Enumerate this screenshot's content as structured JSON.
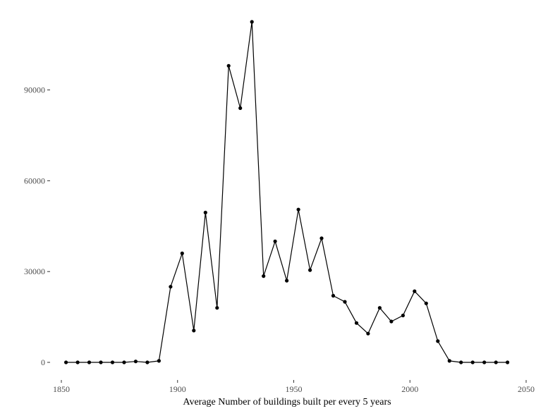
{
  "chart_data": {
    "type": "line",
    "title": "",
    "xlabel": "Average Number of buildings built per every 5 years",
    "ylabel": "",
    "xlim": [
      1850,
      2050
    ],
    "ylim": [
      0,
      112500
    ],
    "grid": false,
    "legend": "none",
    "x_ticks": [
      1850,
      1900,
      1950,
      2000,
      2050
    ],
    "x_tick_labels": [
      "1850",
      "1900",
      "1950",
      "2000",
      "2050"
    ],
    "y_ticks": [
      0,
      30000,
      60000,
      90000
    ],
    "y_tick_labels": [
      "0",
      "30000",
      "60000",
      "90000"
    ],
    "line_color": "#000000",
    "series": [
      {
        "x": [
          1852,
          1857,
          1862,
          1867,
          1872,
          1877,
          1882,
          1887,
          1892,
          1897,
          1902,
          1907,
          1912,
          1917,
          1922,
          1927,
          1932,
          1937,
          1942,
          1947,
          1952,
          1957,
          1962,
          1967,
          1972,
          1977,
          1982,
          1987,
          1992,
          1997,
          2002,
          2007,
          2012,
          2017,
          2022,
          2027,
          2032,
          2037,
          2042
        ],
        "values": [
          0,
          0,
          0,
          0,
          0,
          0,
          300,
          0,
          500,
          25000,
          36000,
          10500,
          49500,
          18000,
          98000,
          84000,
          112500,
          28500,
          40000,
          27000,
          50500,
          30500,
          41000,
          22000,
          20000,
          13000,
          9500,
          18000,
          13500,
          15500,
          23500,
          19500,
          7000,
          500,
          0,
          0,
          0,
          0,
          0
        ]
      }
    ]
  }
}
